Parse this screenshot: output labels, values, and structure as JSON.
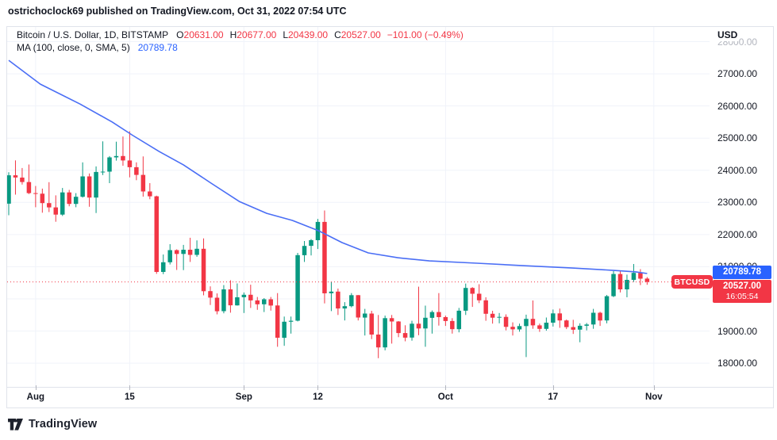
{
  "header": {
    "attribution": "ostrichoclock69 published on TradingView.com, Oct 31, 2022 07:54 UTC"
  },
  "legend": {
    "symbol_title": "Bitcoin / U.S. Dollar, 1D, BITSTAMP",
    "ohlc": [
      {
        "label": "O",
        "value": "20631.00"
      },
      {
        "label": "H",
        "value": "20677.00"
      },
      {
        "label": "L",
        "value": "20439.00"
      },
      {
        "label": "C",
        "value": "20527.00"
      }
    ],
    "change": "−101.00 (−0.49%)",
    "ma_title": "MA (100, close, 0, SMA, 5)",
    "ma_value": "20789.78"
  },
  "price_scale": {
    "currency_label": "USD",
    "ticks": [
      {
        "value": 28000,
        "label": "28000.00",
        "muted": true
      },
      {
        "value": 27000,
        "label": "27000.00",
        "muted": false
      },
      {
        "value": 26000,
        "label": "26000.00",
        "muted": false
      },
      {
        "value": 25000,
        "label": "25000.00",
        "muted": false
      },
      {
        "value": 24000,
        "label": "24000.00",
        "muted": false
      },
      {
        "value": 23000,
        "label": "23000.00",
        "muted": false
      },
      {
        "value": 22000,
        "label": "22000.00",
        "muted": false
      },
      {
        "value": 21000,
        "label": "21000.00",
        "muted": false
      },
      {
        "value": 20000,
        "label": "20000.00",
        "muted": false
      },
      {
        "value": 19000,
        "label": "19000.00",
        "muted": false
      },
      {
        "value": 18000,
        "label": "18000.00",
        "muted": false
      }
    ],
    "ma_label": "20789.78",
    "last_price_label": "20527.00",
    "countdown": "16:05:54"
  },
  "symbol_badge": "BTCUSD",
  "footer": {
    "logo_text": "TradingView"
  },
  "chart_data": {
    "type": "candlestick",
    "title": "Bitcoin / U.S. Dollar",
    "symbol": "BTCUSD",
    "exchange": "BITSTAMP",
    "interval": "1D",
    "overlay": "SMA 100",
    "last_price": 20527.0,
    "ma_last_value": 20789.78,
    "y_axis": {
      "min": 17263,
      "max": 28457,
      "tick_step": 1000,
      "grid": true
    },
    "x_axis": {
      "ticks": [
        {
          "label": "Aug",
          "index": 4
        },
        {
          "label": "15",
          "index": 18
        },
        {
          "label": "Sep",
          "index": 35
        },
        {
          "label": "12",
          "index": 46
        },
        {
          "label": "Oct",
          "index": 65
        },
        {
          "label": "17",
          "index": 81
        },
        {
          "label": "Nov",
          "index": 96
        }
      ]
    },
    "candles": [
      [
        "Jul 28",
        22960,
        23940,
        22600,
        23843
      ],
      [
        "Jul 29",
        23843,
        24308,
        23243,
        23773
      ],
      [
        "Jul 30",
        23773,
        24070,
        23555,
        23634
      ],
      [
        "Jul 31",
        23634,
        24180,
        23260,
        23290
      ],
      [
        "Aug 1",
        23290,
        23510,
        22850,
        23271
      ],
      [
        "Aug 2",
        23271,
        23430,
        22680,
        22978
      ],
      [
        "Aug 3",
        22978,
        23630,
        22700,
        22846
      ],
      [
        "Aug 4",
        22846,
        23220,
        22400,
        22622
      ],
      [
        "Aug 5",
        22622,
        23450,
        22580,
        23312
      ],
      [
        "Aug 6",
        23312,
        23390,
        22880,
        22954
      ],
      [
        "Aug 7",
        22954,
        23290,
        22850,
        23175
      ],
      [
        "Aug 8",
        23175,
        24245,
        23150,
        23809
      ],
      [
        "Aug 9",
        23809,
        23900,
        22865,
        23150
      ],
      [
        "Aug 10",
        23150,
        24120,
        22670,
        23947
      ],
      [
        "Aug 11",
        23947,
        24900,
        23850,
        23957
      ],
      [
        "Aug 12",
        23957,
        24440,
        23600,
        24402
      ],
      [
        "Aug 13",
        24402,
        24890,
        24300,
        24443
      ],
      [
        "Aug 14",
        24443,
        25050,
        24140,
        24305
      ],
      [
        "Aug 15",
        24305,
        25211,
        23780,
        24095
      ],
      [
        "Aug 16",
        24095,
        24245,
        23690,
        23857
      ],
      [
        "Aug 17",
        23857,
        24430,
        23180,
        23342
      ],
      [
        "Aug 18",
        23342,
        23600,
        23100,
        23191
      ],
      [
        "Aug 19",
        23191,
        23210,
        20780,
        20838
      ],
      [
        "Aug 20",
        20838,
        21380,
        20770,
        21139
      ],
      [
        "Aug 21",
        21139,
        21700,
        21070,
        21516
      ],
      [
        "Aug 22",
        21516,
        21540,
        20900,
        21398
      ],
      [
        "Aug 23",
        21398,
        21680,
        20895,
        21529
      ],
      [
        "Aug 24",
        21529,
        21900,
        21150,
        21368
      ],
      [
        "Aug 25",
        21368,
        21820,
        21310,
        21559
      ],
      [
        "Aug 26",
        21559,
        21880,
        20110,
        20241
      ],
      [
        "Aug 27",
        20241,
        20390,
        19810,
        20038
      ],
      [
        "Aug 28",
        20038,
        20170,
        19520,
        19616
      ],
      [
        "Aug 29",
        19616,
        20430,
        19550,
        20295
      ],
      [
        "Aug 30",
        20295,
        20580,
        19570,
        19799
      ],
      [
        "Aug 31",
        19799,
        20480,
        19790,
        20050
      ],
      [
        "Sep 1",
        20050,
        20200,
        19560,
        20127
      ],
      [
        "Sep 2",
        20127,
        20440,
        19720,
        19952
      ],
      [
        "Sep 3",
        19952,
        20060,
        19660,
        19832
      ],
      [
        "Sep 4",
        19832,
        20025,
        19590,
        19988
      ],
      [
        "Sep 5",
        19988,
        20060,
        19635,
        19794
      ],
      [
        "Sep 6",
        19794,
        20180,
        18510,
        18790
      ],
      [
        "Sep 7",
        18790,
        19450,
        18540,
        19290
      ],
      [
        "Sep 8",
        19290,
        19450,
        18920,
        19320
      ],
      [
        "Sep 9",
        19320,
        21430,
        19300,
        21360
      ],
      [
        "Sep 10",
        21360,
        21800,
        21150,
        21648
      ],
      [
        "Sep 11",
        21648,
        21860,
        21350,
        21826
      ],
      [
        "Sep 12",
        21826,
        22488,
        21550,
        22395
      ],
      [
        "Sep 13",
        22395,
        22750,
        19860,
        20173
      ],
      [
        "Sep 14",
        20173,
        20540,
        19620,
        20226
      ],
      [
        "Sep 15",
        20226,
        20320,
        19500,
        19701
      ],
      [
        "Sep 16",
        19701,
        19900,
        19330,
        19772
      ],
      [
        "Sep 17",
        19772,
        20180,
        19735,
        20115
      ],
      [
        "Sep 18",
        20115,
        20120,
        19330,
        19419
      ],
      [
        "Sep 19",
        19419,
        19690,
        18860,
        19544
      ],
      [
        "Sep 20",
        19544,
        19630,
        18750,
        18890
      ],
      [
        "Sep 21",
        18890,
        19500,
        18155,
        18491
      ],
      [
        "Sep 22",
        18491,
        19480,
        18400,
        19401
      ],
      [
        "Sep 23",
        19401,
        19500,
        18610,
        19297
      ],
      [
        "Sep 24",
        19297,
        19310,
        18810,
        18937
      ],
      [
        "Sep 25",
        18937,
        19180,
        18680,
        18795
      ],
      [
        "Sep 26",
        18795,
        19320,
        18700,
        19227
      ],
      [
        "Sep 27",
        19227,
        20380,
        18870,
        19079
      ],
      [
        "Sep 28",
        19079,
        19790,
        18510,
        19412
      ],
      [
        "Sep 29",
        19412,
        19640,
        18920,
        19591
      ],
      [
        "Sep 30",
        19591,
        20180,
        19170,
        19432
      ],
      [
        "Oct 1",
        19432,
        19480,
        19160,
        19312
      ],
      [
        "Oct 2",
        19312,
        19400,
        18920,
        19059
      ],
      [
        "Oct 3",
        19059,
        19720,
        18960,
        19633
      ],
      [
        "Oct 4",
        19633,
        20475,
        19500,
        20340
      ],
      [
        "Oct 5",
        20340,
        20365,
        19750,
        20160
      ],
      [
        "Oct 6",
        20160,
        20456,
        19870,
        19955
      ],
      [
        "Oct 7",
        19955,
        20050,
        19320,
        19536
      ],
      [
        "Oct 8",
        19536,
        19630,
        19230,
        19416
      ],
      [
        "Oct 9",
        19416,
        19560,
        19240,
        19441
      ],
      [
        "Oct 10",
        19441,
        19520,
        19020,
        19131
      ],
      [
        "Oct 11",
        19131,
        19270,
        18860,
        19051
      ],
      [
        "Oct 12",
        19051,
        19230,
        18980,
        19155
      ],
      [
        "Oct 13",
        19155,
        19510,
        18190,
        19379
      ],
      [
        "Oct 14",
        19379,
        19950,
        19070,
        19176
      ],
      [
        "Oct 15",
        19176,
        19230,
        18975,
        19067
      ],
      [
        "Oct 16",
        19067,
        19420,
        19010,
        19260
      ],
      [
        "Oct 17",
        19260,
        19670,
        19140,
        19548
      ],
      [
        "Oct 18",
        19548,
        19700,
        19100,
        19329
      ],
      [
        "Oct 19",
        19329,
        19360,
        19060,
        19123
      ],
      [
        "Oct 20",
        19123,
        19350,
        18910,
        19041
      ],
      [
        "Oct 21",
        19041,
        19240,
        18650,
        19163
      ],
      [
        "Oct 22",
        19163,
        19250,
        19020,
        19203
      ],
      [
        "Oct 23",
        19203,
        19690,
        19070,
        19569
      ],
      [
        "Oct 24",
        19569,
        19600,
        19160,
        19328
      ],
      [
        "Oct 25",
        19328,
        20120,
        19240,
        20083
      ],
      [
        "Oct 26",
        20083,
        20865,
        20055,
        20773
      ],
      [
        "Oct 27",
        20773,
        20880,
        20200,
        20295
      ],
      [
        "Oct 28",
        20295,
        20755,
        20050,
        20591
      ],
      [
        "Oct 29",
        20591,
        21085,
        20530,
        20809
      ],
      [
        "Oct 30",
        20809,
        20925,
        20430,
        20628
      ],
      [
        "Oct 31",
        20631,
        20677,
        20439,
        20527
      ]
    ],
    "ma_line": {
      "name": "MA (100, close, 0, SMA, 5)",
      "points": [
        [
          0,
          27420
        ],
        [
          4.7,
          26680
        ],
        [
          10.6,
          26060
        ],
        [
          15.4,
          25500
        ],
        [
          18.5,
          25080
        ],
        [
          22.4,
          24580
        ],
        [
          26,
          24170
        ],
        [
          30.1,
          23600
        ],
        [
          34.3,
          23030
        ],
        [
          38.4,
          22660
        ],
        [
          42.2,
          22440
        ],
        [
          46.1,
          22120
        ],
        [
          49.6,
          21750
        ],
        [
          53.5,
          21430
        ],
        [
          57.9,
          21280
        ],
        [
          62.6,
          21180
        ],
        [
          69.7,
          21110
        ],
        [
          76.8,
          21030
        ],
        [
          83.9,
          20960
        ],
        [
          89.8,
          20890
        ],
        [
          93.3,
          20840
        ],
        [
          95,
          20790
        ]
      ]
    },
    "colors": {
      "up": "#089981",
      "down": "#f23645",
      "ma_line": "#4a6ef5",
      "ma_label_bg": "#2962ff",
      "last_label_bg": "#f23645",
      "grid": "#f0f3fa",
      "frame": "#e0e3eb",
      "text": "#131722"
    }
  }
}
